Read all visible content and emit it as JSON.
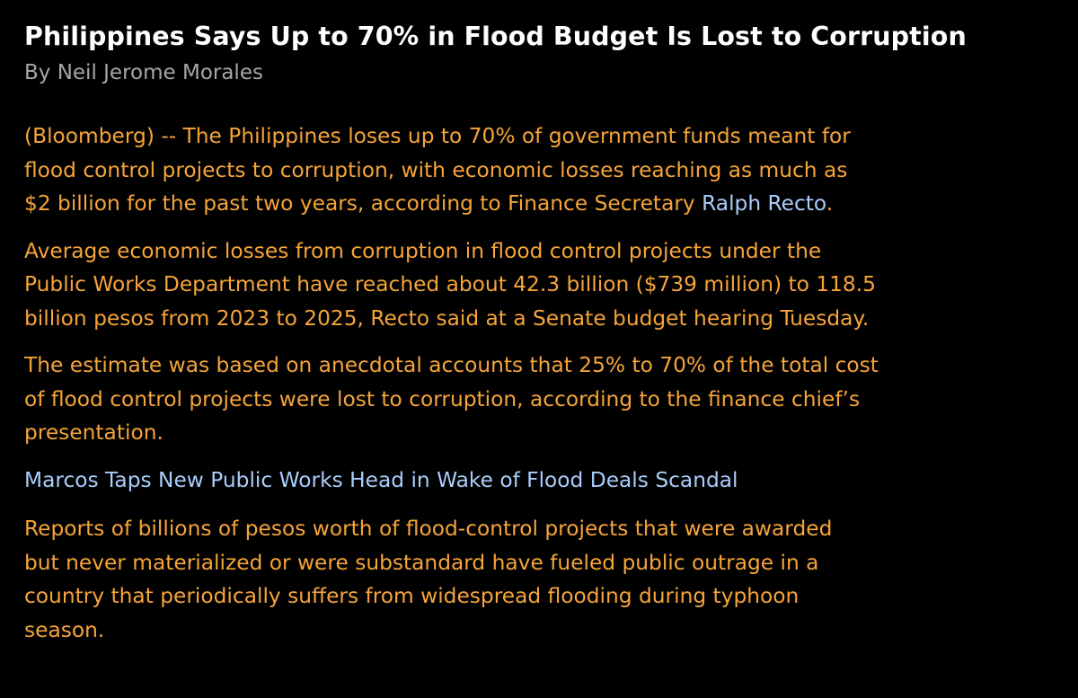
{
  "article": {
    "headline": "Philippines Says Up to 70% in Flood Budget Is Lost to Corruption",
    "byline": "By Neil Jerome Morales",
    "paragraph1": {
      "line1": "(Bloomberg) -- The Philippines loses up to 70% of government funds meant for",
      "line2": "flood control projects to corruption, with economic losses reaching as much as",
      "line3_text": "$2 billion for the past two years, according to Finance Secretary ",
      "line3_link": "Ralph Recto",
      "line3_end": "."
    },
    "paragraph2": {
      "line1": "Average economic losses from corruption in flood control projects under the",
      "line2": "Public Works Department have reached about 42.3 billion ($739 million) to 118.5",
      "line3": "billion pesos from 2023 to 2025, Recto said at a Senate budget hearing Tuesday."
    },
    "paragraph3": {
      "line1": "The estimate was based on anecdotal accounts that 25% to 70% of the total cost",
      "line2": "of flood control projects were lost to corruption, according to the finance chief’s",
      "line3": "presentation."
    },
    "related_link": "Marcos Taps New Public Works Head in Wake of Flood Deals Scandal",
    "paragraph4": {
      "line1": "Reports of billions of pesos worth of flood-control projects that were awarded",
      "line2": "but never materialized or were substandard have fueled public outrage in a",
      "line3": "country that periodically suffers from widespread flooding during typhoon",
      "line4": "season."
    }
  },
  "colors": {
    "background": "#000000",
    "headline": "#ffffff",
    "byline": "#a6a6a6",
    "body_text": "#f6a43a",
    "link": "#a9cdfc"
  }
}
